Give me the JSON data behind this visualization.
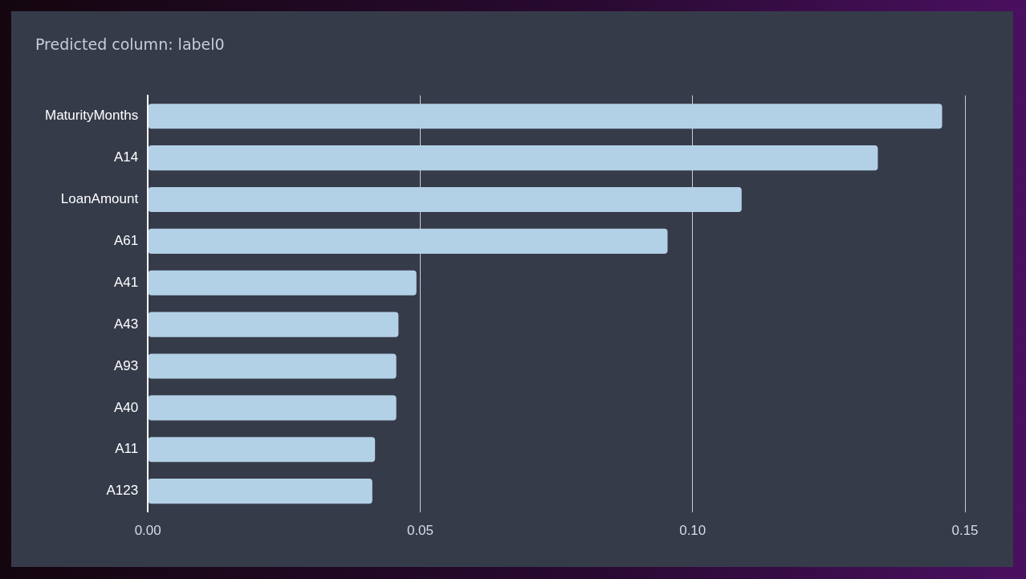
{
  "chart_data": {
    "type": "bar",
    "orientation": "horizontal",
    "title": "Predicted column: label0",
    "categories": [
      "MaturityMonths",
      "A14",
      "LoanAmount",
      "A61",
      "A41",
      "A43",
      "A93",
      "A40",
      "A11",
      "A123"
    ],
    "values": [
      0.1458,
      0.134,
      0.109,
      0.0954,
      0.0493,
      0.046,
      0.0456,
      0.0456,
      0.0417,
      0.0412
    ],
    "color": "#b3d1e6",
    "xlim": [
      0,
      0.15
    ],
    "xticks": [
      {
        "value": 0,
        "label": "0.00"
      },
      0.05,
      {
        "value": 0.1,
        "label": "0.10"
      },
      0.15
    ],
    "grid": "x",
    "legend": false
  }
}
